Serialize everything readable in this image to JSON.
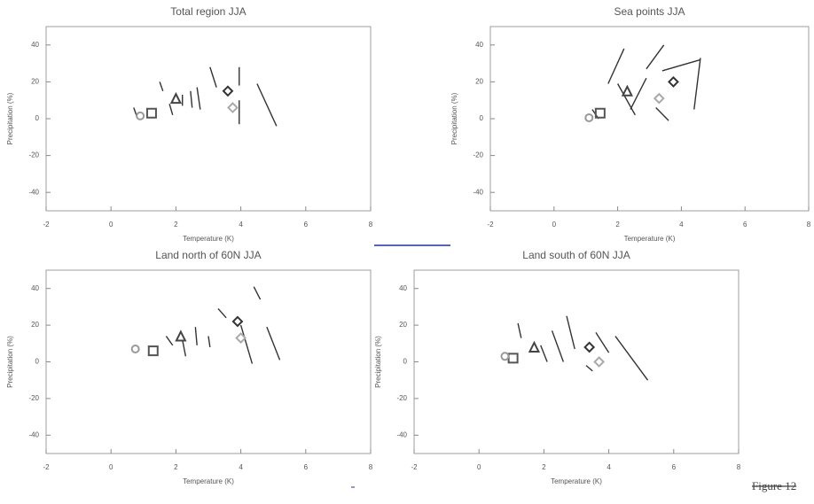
{
  "chart_data": [
    {
      "type": "scatter",
      "title": "Total region JJA",
      "x_label": "Temperature (K)",
      "y_label": "Precipitation (%)",
      "xlim": [
        -2,
        8
      ],
      "xticks": [
        -2,
        0,
        2,
        4,
        6,
        8
      ],
      "ylim": [
        -50,
        50
      ],
      "yticks": [
        -40,
        -20,
        0,
        20,
        40
      ],
      "segments": [
        {
          "x": [
            3.05,
            3.25
          ],
          "values": [
            28,
            17
          ]
        },
        {
          "x": [
            3.95,
            3.95
          ],
          "values": [
            28,
            18
          ]
        },
        {
          "x": [
            3.95,
            3.95
          ],
          "values": [
            10,
            -3
          ]
        },
        {
          "x": [
            4.5,
            5.1
          ],
          "values": [
            19,
            -4
          ]
        },
        {
          "x": [
            2.65,
            2.75
          ],
          "values": [
            17,
            5
          ]
        },
        {
          "x": [
            1.5,
            1.6
          ],
          "values": [
            20,
            15
          ]
        },
        {
          "x": [
            2.45,
            2.5
          ],
          "values": [
            15,
            6
          ]
        },
        {
          "x": [
            2.2,
            2.2
          ],
          "values": [
            13,
            7
          ]
        },
        {
          "x": [
            0.7,
            0.8
          ],
          "values": [
            6,
            1
          ]
        },
        {
          "x": [
            1.8,
            1.9
          ],
          "values": [
            8,
            2
          ]
        }
      ],
      "series": [
        {
          "marker": "diamond",
          "color": "#333333",
          "x": [
            3.6
          ],
          "values": [
            15
          ]
        },
        {
          "marker": "diamond",
          "color": "#aaaaaa",
          "x": [
            3.75
          ],
          "values": [
            6
          ]
        },
        {
          "marker": "triangle",
          "color": "#444444",
          "x": [
            2.0
          ],
          "values": [
            11
          ]
        },
        {
          "marker": "square",
          "color": "#555555",
          "x": [
            1.25
          ],
          "values": [
            3
          ]
        },
        {
          "marker": "circle",
          "color": "#999999",
          "x": [
            0.9
          ],
          "values": [
            1.5
          ]
        }
      ]
    },
    {
      "type": "scatter",
      "title": "Sea points JJA",
      "x_label": "Temperature (K)",
      "y_label": "Precipitation (%)",
      "xlim": [
        -2,
        8
      ],
      "xticks": [
        -2,
        0,
        2,
        4,
        6,
        8
      ],
      "ylim": [
        -50,
        50
      ],
      "yticks": [
        -40,
        -20,
        0,
        20,
        40
      ],
      "segments": [
        {
          "x": [
            1.7,
            2.2
          ],
          "values": [
            19,
            38
          ]
        },
        {
          "x": [
            2.9,
            3.45
          ],
          "values": [
            27,
            40
          ]
        },
        {
          "x": [
            3.4,
            4.6
          ],
          "values": [
            26,
            32
          ]
        },
        {
          "x": [
            4.6,
            4.4
          ],
          "values": [
            33,
            5
          ]
        },
        {
          "x": [
            2.0,
            2.55
          ],
          "values": [
            19,
            2
          ]
        },
        {
          "x": [
            3.2,
            3.6
          ],
          "values": [
            6,
            -1
          ]
        },
        {
          "x": [
            2.4,
            2.9
          ],
          "values": [
            5,
            22
          ]
        },
        {
          "x": [
            1.2,
            1.4
          ],
          "values": [
            5,
            0
          ]
        }
      ],
      "series": [
        {
          "marker": "diamond",
          "color": "#333333",
          "x": [
            3.75
          ],
          "values": [
            20
          ]
        },
        {
          "marker": "diamond",
          "color": "#aaaaaa",
          "x": [
            3.3
          ],
          "values": [
            11
          ]
        },
        {
          "marker": "triangle",
          "color": "#444444",
          "x": [
            2.3
          ],
          "values": [
            15
          ]
        },
        {
          "marker": "square",
          "color": "#555555",
          "x": [
            1.45
          ],
          "values": [
            3
          ]
        },
        {
          "marker": "circle",
          "color": "#999999",
          "x": [
            1.1
          ],
          "values": [
            0.5
          ]
        }
      ]
    },
    {
      "type": "scatter",
      "title": "Land north of 60N JJA",
      "x_label": "Temperature (K)",
      "y_label": "Precipitation (%)",
      "xlim": [
        -2,
        8
      ],
      "xticks": [
        -2,
        0,
        2,
        4,
        6,
        8
      ],
      "ylim": [
        -50,
        50
      ],
      "yticks": [
        -40,
        -20,
        0,
        20,
        40
      ],
      "segments": [
        {
          "x": [
            3.3,
            3.55
          ],
          "values": [
            29,
            24
          ]
        },
        {
          "x": [
            4.4,
            4.6
          ],
          "values": [
            41,
            34
          ]
        },
        {
          "x": [
            4.0,
            4.35
          ],
          "values": [
            20,
            -1
          ]
        },
        {
          "x": [
            4.8,
            5.2
          ],
          "values": [
            19,
            1
          ]
        },
        {
          "x": [
            2.6,
            2.65
          ],
          "values": [
            19,
            9
          ]
        },
        {
          "x": [
            3.0,
            3.05
          ],
          "values": [
            14,
            8
          ]
        },
        {
          "x": [
            1.7,
            1.9
          ],
          "values": [
            14,
            9
          ]
        },
        {
          "x": [
            2.2,
            2.3
          ],
          "values": [
            12,
            3
          ]
        }
      ],
      "series": [
        {
          "marker": "diamond",
          "color": "#333333",
          "x": [
            3.9
          ],
          "values": [
            22
          ]
        },
        {
          "marker": "diamond",
          "color": "#aaaaaa",
          "x": [
            4.0
          ],
          "values": [
            13
          ]
        },
        {
          "marker": "triangle",
          "color": "#444444",
          "x": [
            2.15
          ],
          "values": [
            14
          ]
        },
        {
          "marker": "square",
          "color": "#555555",
          "x": [
            1.3
          ],
          "values": [
            6
          ]
        },
        {
          "marker": "circle",
          "color": "#999999",
          "x": [
            0.75
          ],
          "values": [
            7
          ]
        }
      ]
    },
    {
      "type": "scatter",
      "title": "Land south of 60N JJA",
      "x_label": "Temperature (K)",
      "y_label": "Precipitation (%)",
      "xlim": [
        -2,
        8
      ],
      "xticks": [
        -2,
        0,
        2,
        4,
        6,
        8
      ],
      "ylim": [
        -50,
        50
      ],
      "yticks": [
        -40,
        -20,
        0,
        20,
        40
      ],
      "segments": [
        {
          "x": [
            1.2,
            1.3
          ],
          "values": [
            21,
            13
          ]
        },
        {
          "x": [
            2.7,
            2.95
          ],
          "values": [
            25,
            7
          ]
        },
        {
          "x": [
            2.25,
            2.6
          ],
          "values": [
            17,
            0
          ]
        },
        {
          "x": [
            4.2,
            5.2
          ],
          "values": [
            14,
            -10
          ]
        },
        {
          "x": [
            3.6,
            4.0
          ],
          "values": [
            16,
            5
          ]
        },
        {
          "x": [
            1.9,
            2.1
          ],
          "values": [
            9,
            0
          ]
        },
        {
          "x": [
            3.3,
            3.5
          ],
          "values": [
            -2,
            -5
          ]
        }
      ],
      "series": [
        {
          "marker": "diamond",
          "color": "#333333",
          "x": [
            3.4
          ],
          "values": [
            8
          ]
        },
        {
          "marker": "diamond",
          "color": "#aaaaaa",
          "x": [
            3.7
          ],
          "values": [
            0
          ]
        },
        {
          "marker": "triangle",
          "color": "#444444",
          "x": [
            1.7
          ],
          "values": [
            8
          ]
        },
        {
          "marker": "square",
          "color": "#555555",
          "x": [
            1.05
          ],
          "values": [
            2
          ]
        },
        {
          "marker": "circle",
          "color": "#999999",
          "x": [
            0.8
          ],
          "values": [
            3
          ]
        }
      ]
    }
  ],
  "caption": "Figure 12"
}
